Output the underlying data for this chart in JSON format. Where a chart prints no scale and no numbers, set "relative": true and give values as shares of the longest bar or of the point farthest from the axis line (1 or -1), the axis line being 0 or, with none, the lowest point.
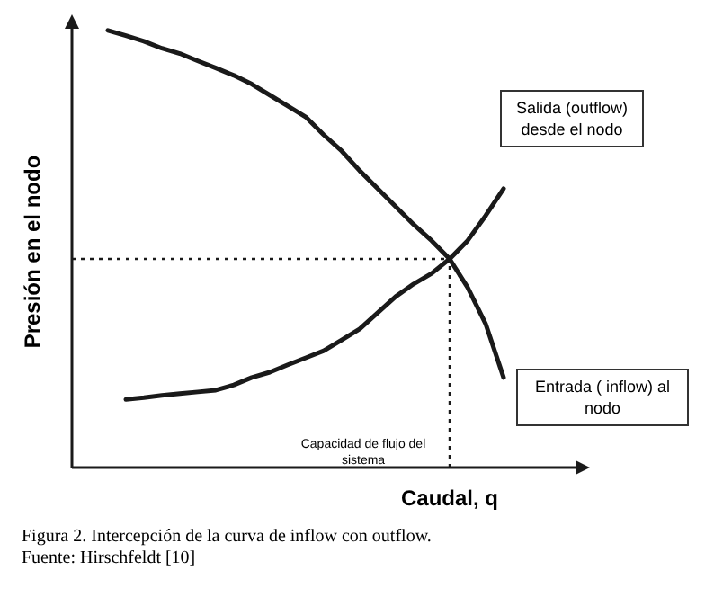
{
  "chart_data": {
    "type": "line",
    "relative": true,
    "xlabel": "Caudal, q",
    "ylabel": "Presión en el nodo",
    "marker": "none",
    "line_style": "solid",
    "categories": [
      null,
      null,
      null,
      null,
      null,
      null,
      null,
      null,
      null,
      null,
      null,
      null,
      null,
      null,
      null,
      null,
      null,
      null,
      null,
      null,
      null,
      null,
      null
    ],
    "series": [
      {
        "name": "Entrada ( inflow) al nodo",
        "color": "#1a1a1a",
        "values": [
          1,
          0.988,
          0.975,
          0.959,
          0.947,
          0.93,
          0.914,
          0.897,
          0.877,
          0.852,
          0.827,
          0.802,
          0.761,
          0.724,
          0.679,
          0.638,
          0.597,
          0.556,
          0.519,
          0.477,
          0.412,
          0.329,
          0.206
        ]
      },
      {
        "name": "Salida (outflow) desde el nodo",
        "color": "#1a1a1a",
        "values": [
          null,
          0.156,
          0.16,
          0.165,
          0.169,
          0.173,
          0.177,
          0.189,
          0.206,
          0.218,
          0.235,
          0.251,
          0.267,
          0.292,
          0.317,
          0.354,
          0.391,
          0.42,
          0.444,
          0.477,
          0.519,
          0.576,
          0.638
        ]
      }
    ],
    "ref_lines": [
      {
        "axis": "y",
        "value": 0.477,
        "line_style": "dotted",
        "color": "#1a1a1a"
      }
    ],
    "annotations": [
      "Capacidad de flujo del sistema",
      "Figura 2. Intercepción de la curva de inflow con outflow.",
      "Fuente: Hirschfeldt [10]"
    ]
  }
}
